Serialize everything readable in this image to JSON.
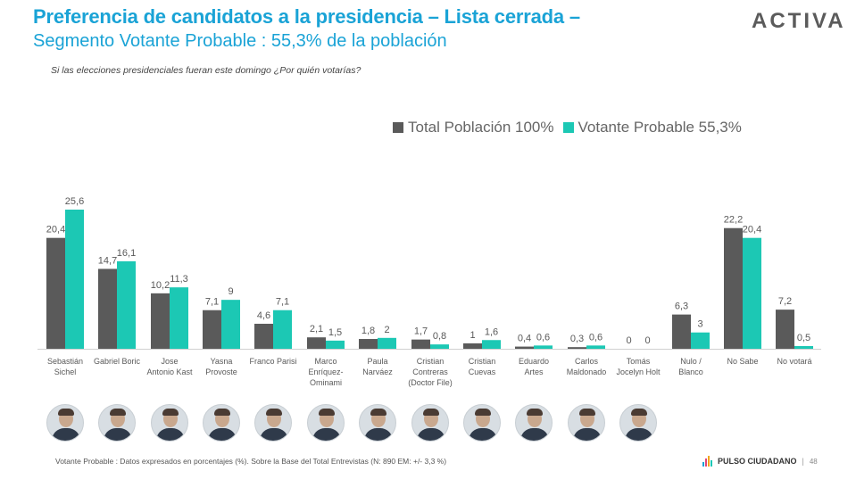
{
  "header": {
    "title": "Preferencia de candidatos a la presidencia – Lista cerrada –",
    "subtitle": "Segmento Votante Probable : 55,3% de la población",
    "logo": "ACTIVA",
    "question": "Si las elecciones presidenciales fueran este domingo ¿Por quién votarías?"
  },
  "colors": {
    "total": "#5a5a5a",
    "probable": "#1cc8b4",
    "accent": "#1aa3d6"
  },
  "chart_data": {
    "type": "bar",
    "categories": [
      [
        "Sebastián",
        "Sichel"
      ],
      [
        "Gabriel Boric"
      ],
      [
        "Jose",
        "Antonio Kast"
      ],
      [
        "Yasna",
        "Provoste"
      ],
      [
        "Franco Parisi"
      ],
      [
        "Marco",
        "Enríquez-",
        "Ominami"
      ],
      [
        "Paula",
        "Narváez"
      ],
      [
        "Cristian",
        "Contreras",
        "(Doctor File)"
      ],
      [
        "Cristian",
        "Cuevas"
      ],
      [
        "Eduardo",
        "Artes"
      ],
      [
        "Carlos",
        "Maldonado"
      ],
      [
        "Tomás",
        "Jocelyn Holt"
      ],
      [
        "Nulo /",
        "Blanco"
      ],
      [
        "No Sabe"
      ],
      [
        "No votará"
      ]
    ],
    "series": [
      {
        "name": "Total Población 100%",
        "values": [
          20.4,
          14.7,
          10.2,
          7.1,
          4.6,
          2.1,
          1.8,
          1.7,
          1,
          0.4,
          0.3,
          0,
          6.3,
          22.2,
          7.2
        ],
        "labels": [
          "20,4",
          "14,7",
          "10,2",
          "7,1",
          "4,6",
          "2,1",
          "1,8",
          "1,7",
          "1",
          "0,4",
          "0,3",
          "0",
          "6,3",
          "22,2",
          "7,2"
        ]
      },
      {
        "name": "Votante Probable 55,3%",
        "values": [
          25.6,
          16.1,
          11.3,
          9,
          7.1,
          1.5,
          2,
          0.8,
          1.6,
          0.6,
          0.6,
          0,
          3,
          20.4,
          0.5
        ],
        "labels": [
          "25,6",
          "16,1",
          "11,3",
          "9",
          "7,1",
          "1,5",
          "2",
          "0,8",
          "1,6",
          "0,6",
          "0,6",
          "0",
          "3",
          "20,4",
          "0,5"
        ]
      }
    ],
    "ylim": [
      0,
      25.6
    ],
    "legend": "top-right",
    "grid": false
  },
  "avatars": [
    "sichel-photo",
    "boric-photo",
    "kast-photo",
    "provoste-photo",
    "parisi-photo",
    "enriquez-ominami-photo",
    "narvaez-photo",
    "contreras-photo",
    "cuevas-photo",
    "artes-photo",
    "maldonado-photo",
    "jocelyn-holt-photo"
  ],
  "footer": {
    "note": "Votante Probable : Datos expresados en porcentajes (%). Sobre la Base del Total Entrevistas (N: 890  EM: +/- 3,3 %)",
    "brand": "PULSO CIUDADANO",
    "separator": "|",
    "page": "48"
  }
}
